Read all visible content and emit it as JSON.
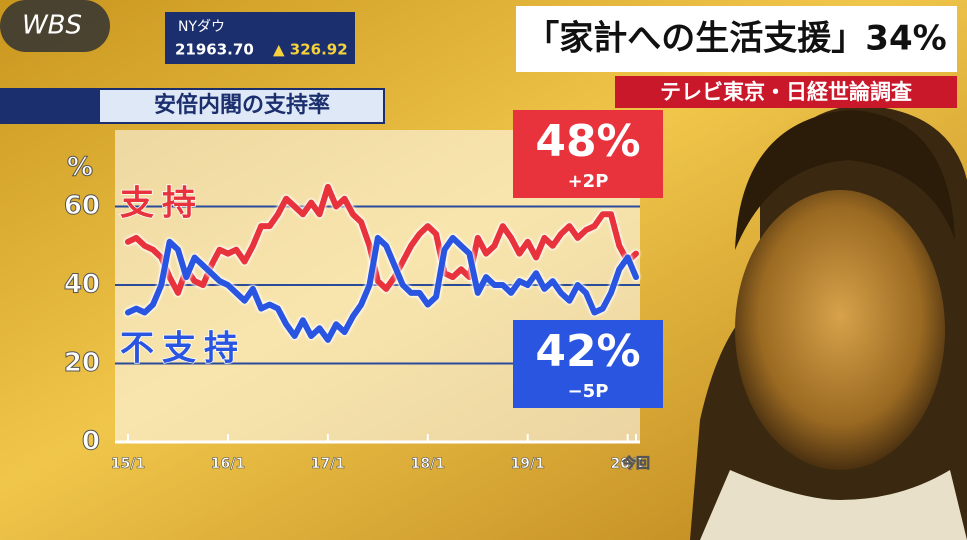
{
  "logo": "WBS",
  "ticker": {
    "label": "NYダウ",
    "price": "21963.70",
    "change": "▲ 326.92"
  },
  "headline": {
    "title": "「家計への生活支援」34%",
    "source": "テレビ東京・日経世論調査"
  },
  "chart_data": {
    "type": "line",
    "title": "安倍内閣の支持率",
    "y_label": "%",
    "categories": [
      "15/1",
      null,
      null,
      null,
      null,
      null,
      null,
      null,
      null,
      null,
      null,
      null,
      "16/1",
      null,
      null,
      null,
      null,
      null,
      null,
      null,
      null,
      null,
      null,
      null,
      "17/1",
      null,
      null,
      null,
      null,
      null,
      null,
      null,
      null,
      null,
      null,
      null,
      "18/1",
      null,
      null,
      null,
      null,
      null,
      null,
      null,
      null,
      null,
      null,
      null,
      "19/1",
      null,
      null,
      null,
      null,
      null,
      null,
      null,
      null,
      null,
      null,
      null,
      "20/1",
      "今回"
    ],
    "series": [
      {
        "name": "支持",
        "color": "#e8323c",
        "values": [
          51,
          52,
          50,
          49,
          47,
          42,
          38,
          44,
          41,
          40,
          45,
          49,
          48,
          49,
          46,
          50,
          55,
          55,
          58,
          62,
          60,
          58,
          61,
          58,
          65,
          60,
          62,
          58,
          56,
          50,
          41,
          39,
          42,
          46,
          50,
          53,
          55,
          53,
          43,
          42,
          44,
          42,
          52,
          48,
          50,
          55,
          52,
          48,
          51,
          47,
          52,
          50,
          53,
          55,
          52,
          54,
          55,
          58,
          58,
          50,
          46,
          48
        ]
      },
      {
        "name": "不支持",
        "color": "#2a55e0",
        "values": [
          33,
          34,
          33,
          35,
          40,
          51,
          49,
          42,
          47,
          45,
          43,
          41,
          40,
          38,
          36,
          39,
          34,
          35,
          34,
          30,
          27,
          31,
          27,
          29,
          26,
          30,
          28,
          32,
          35,
          40,
          52,
          50,
          45,
          40,
          38,
          38,
          35,
          37,
          49,
          52,
          50,
          48,
          38,
          42,
          40,
          40,
          38,
          41,
          40,
          43,
          39,
          41,
          38,
          36,
          40,
          38,
          33,
          34,
          38,
          44,
          47,
          42
        ]
      }
    ],
    "ylim": [
      0,
      80
    ],
    "yticks": [
      0,
      20,
      40,
      60
    ],
    "grid": true,
    "annotations": [
      {
        "text": "48%",
        "change": "+2P",
        "color": "#e8323c"
      },
      {
        "text": "42%",
        "change": "−5P",
        "color": "#2a55e0"
      }
    ]
  }
}
